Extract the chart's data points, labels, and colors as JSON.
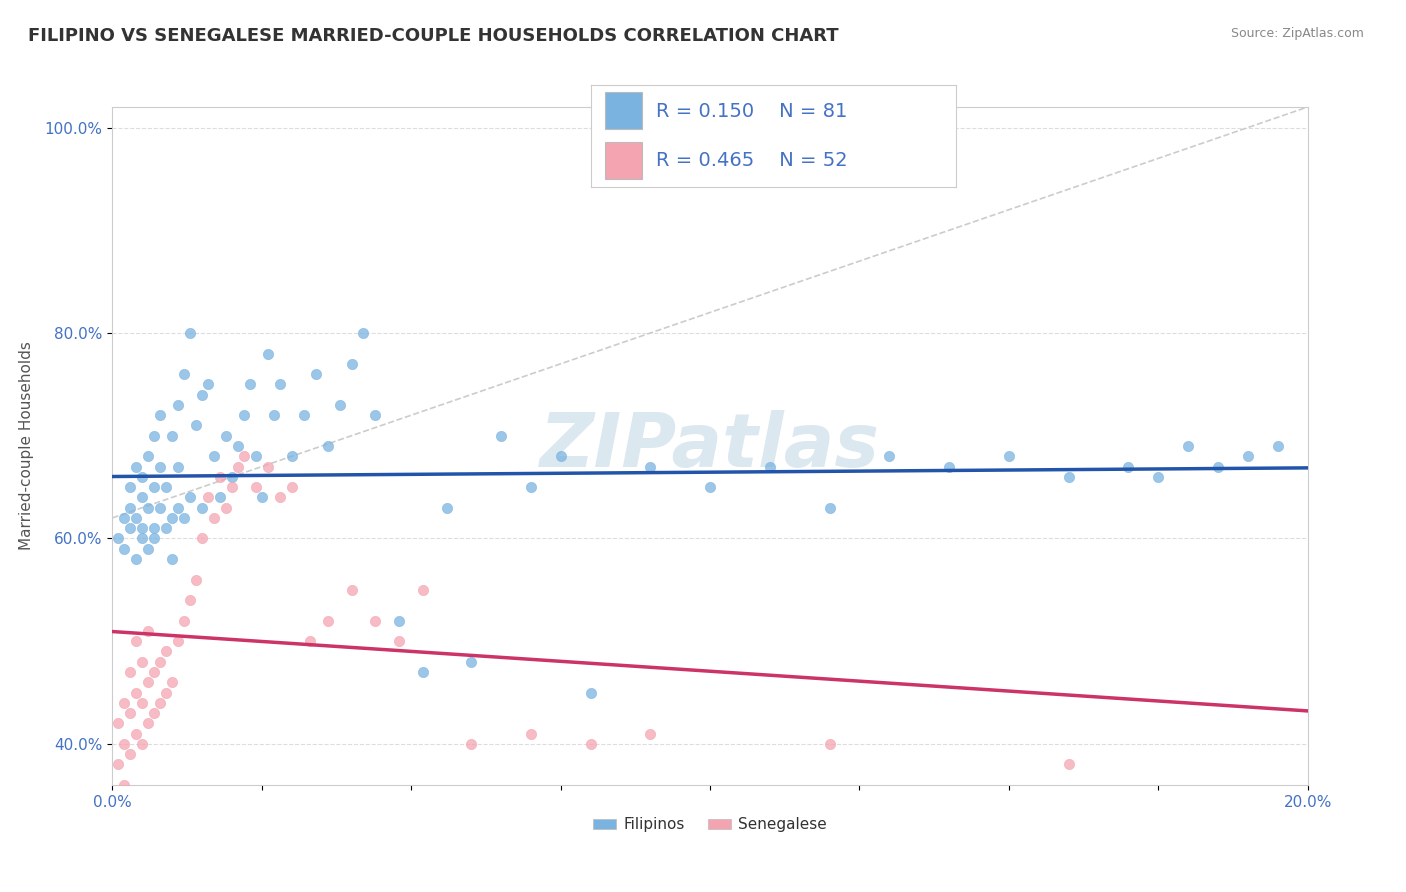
{
  "title": "FILIPINO VS SENEGALESE MARRIED-COUPLE HOUSEHOLDS CORRELATION CHART",
  "source": "Source: ZipAtlas.com",
  "ylabel": "Married-couple Households",
  "xlim": [
    0.0,
    0.2
  ],
  "ylim": [
    0.36,
    1.02
  ],
  "xtick_positions": [
    0.0,
    0.025,
    0.05,
    0.075,
    0.1,
    0.125,
    0.15,
    0.175,
    0.2
  ],
  "xtick_labels": [
    "0.0%",
    "",
    "",
    "",
    "",
    "",
    "",
    "",
    "20.0%"
  ],
  "ytick_positions": [
    0.4,
    0.6,
    0.8,
    1.0
  ],
  "ytick_labels": [
    "40.0%",
    "60.0%",
    "80.0%",
    "100.0%"
  ],
  "R_filipino": 0.15,
  "N_filipino": 81,
  "R_senegalese": 0.465,
  "N_senegalese": 52,
  "color_filipino": "#7ab3e0",
  "color_senegalese": "#f4a4b0",
  "line_color_filipino": "#2255aa",
  "line_color_senegalese": "#cc3366",
  "background_color": "#ffffff",
  "watermark": "ZIPatlas",
  "title_fontsize": 13,
  "tick_color": "#4472c4",
  "filipino_x": [
    0.001,
    0.002,
    0.002,
    0.003,
    0.003,
    0.003,
    0.004,
    0.004,
    0.004,
    0.005,
    0.005,
    0.005,
    0.005,
    0.006,
    0.006,
    0.006,
    0.007,
    0.007,
    0.007,
    0.007,
    0.008,
    0.008,
    0.008,
    0.009,
    0.009,
    0.01,
    0.01,
    0.01,
    0.011,
    0.011,
    0.011,
    0.012,
    0.012,
    0.013,
    0.013,
    0.014,
    0.015,
    0.015,
    0.016,
    0.017,
    0.018,
    0.019,
    0.02,
    0.021,
    0.022,
    0.023,
    0.024,
    0.025,
    0.026,
    0.027,
    0.028,
    0.03,
    0.032,
    0.034,
    0.036,
    0.038,
    0.04,
    0.042,
    0.044,
    0.048,
    0.052,
    0.056,
    0.06,
    0.065,
    0.07,
    0.075,
    0.08,
    0.09,
    0.1,
    0.11,
    0.12,
    0.13,
    0.14,
    0.15,
    0.16,
    0.17,
    0.175,
    0.18,
    0.185,
    0.19,
    0.195
  ],
  "filipino_y": [
    0.6,
    0.62,
    0.59,
    0.63,
    0.61,
    0.65,
    0.58,
    0.62,
    0.67,
    0.6,
    0.64,
    0.61,
    0.66,
    0.59,
    0.63,
    0.68,
    0.61,
    0.65,
    0.7,
    0.6,
    0.63,
    0.67,
    0.72,
    0.61,
    0.65,
    0.58,
    0.62,
    0.7,
    0.63,
    0.67,
    0.73,
    0.62,
    0.76,
    0.64,
    0.8,
    0.71,
    0.63,
    0.74,
    0.75,
    0.68,
    0.64,
    0.7,
    0.66,
    0.69,
    0.72,
    0.75,
    0.68,
    0.64,
    0.78,
    0.72,
    0.75,
    0.68,
    0.72,
    0.76,
    0.69,
    0.73,
    0.77,
    0.8,
    0.72,
    0.52,
    0.47,
    0.63,
    0.48,
    0.7,
    0.65,
    0.68,
    0.45,
    0.67,
    0.65,
    0.67,
    0.63,
    0.68,
    0.67,
    0.68,
    0.66,
    0.67,
    0.66,
    0.69,
    0.67,
    0.68,
    0.69
  ],
  "senegalese_x": [
    0.001,
    0.001,
    0.002,
    0.002,
    0.002,
    0.003,
    0.003,
    0.003,
    0.004,
    0.004,
    0.004,
    0.005,
    0.005,
    0.005,
    0.006,
    0.006,
    0.006,
    0.007,
    0.007,
    0.008,
    0.008,
    0.009,
    0.009,
    0.01,
    0.011,
    0.012,
    0.013,
    0.014,
    0.015,
    0.016,
    0.017,
    0.018,
    0.019,
    0.02,
    0.021,
    0.022,
    0.024,
    0.026,
    0.028,
    0.03,
    0.033,
    0.036,
    0.04,
    0.044,
    0.048,
    0.052,
    0.06,
    0.07,
    0.08,
    0.09,
    0.12,
    0.16
  ],
  "senegalese_y": [
    0.38,
    0.42,
    0.36,
    0.4,
    0.44,
    0.39,
    0.43,
    0.47,
    0.41,
    0.45,
    0.5,
    0.4,
    0.44,
    0.48,
    0.42,
    0.46,
    0.51,
    0.43,
    0.47,
    0.44,
    0.48,
    0.45,
    0.49,
    0.46,
    0.5,
    0.52,
    0.54,
    0.56,
    0.6,
    0.64,
    0.62,
    0.66,
    0.63,
    0.65,
    0.67,
    0.68,
    0.65,
    0.67,
    0.64,
    0.65,
    0.5,
    0.52,
    0.55,
    0.52,
    0.5,
    0.55,
    0.4,
    0.41,
    0.4,
    0.41,
    0.4,
    0.38
  ]
}
